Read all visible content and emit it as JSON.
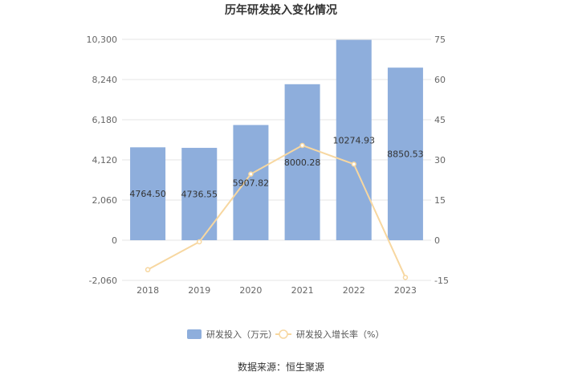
{
  "chart_data": {
    "type": "bar",
    "title": "历年研发投入变化情况",
    "categories": [
      "2018",
      "2019",
      "2020",
      "2021",
      "2022",
      "2023"
    ],
    "series": [
      {
        "name": "研发投入（万元）",
        "type": "bar",
        "axis": "left",
        "color": "#8eaedc",
        "values": [
          4764.5,
          4736.55,
          5907.82,
          8000.28,
          10274.93,
          8850.53
        ],
        "labels": [
          "4764.50",
          "4736.55",
          "5907.82",
          "8000.28",
          "10274.93",
          "8850.53"
        ]
      },
      {
        "name": "研发投入增长率（%）",
        "type": "line",
        "axis": "right",
        "color": "#f7d7a0",
        "values": [
          -11.0,
          -0.6,
          24.7,
          35.4,
          28.4,
          -13.9
        ]
      }
    ],
    "y_left": {
      "ticks": [
        "10,300",
        "8,240",
        "6,180",
        "4,120",
        "2,060",
        "0",
        "-2,060"
      ],
      "ylim": [
        -2060,
        10300
      ]
    },
    "y_right": {
      "ticks": [
        "75",
        "60",
        "45",
        "30",
        "15",
        "0",
        "-15"
      ],
      "ylim": [
        -15,
        75
      ]
    },
    "grid": true,
    "legend_position": "bottom"
  },
  "source": "数据来源：恒生聚源"
}
